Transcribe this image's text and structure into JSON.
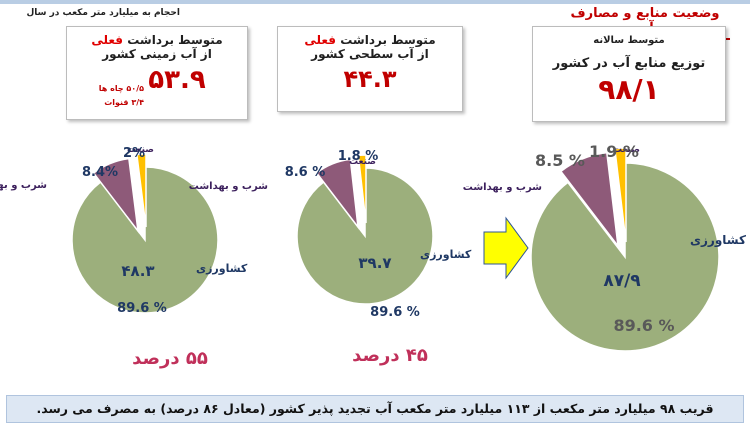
{
  "header": {
    "title": "وضعیت منابع و مصارف آب",
    "unit_note": "احجام به میلیارد متر مکعب در سال"
  },
  "boxes": [
    {
      "line1_prefix": "متوسط برداشت ",
      "line1_red": "فعلی",
      "line2": "از آب زمینی کشور",
      "value": "۵۳.۹",
      "notes": [
        "۵۰/۵ چاه ها",
        "۳/۴ قنوات"
      ]
    },
    {
      "line1_prefix": "متوسط برداشت ",
      "line1_red": "فعلی",
      "line2": "از آب سطحی کشور",
      "value": "۴۴.۳"
    },
    {
      "line1": "متوسط سالانه",
      "line2": "توزیع منابع آب در کشور",
      "value": "۹۸/۱"
    }
  ],
  "percent_labels": [
    "۵۵ درصد",
    "۴۵ درصد"
  ],
  "colors": {
    "agri": "#9caf7c",
    "drink": "#8e5a79",
    "industry": "#ffc000",
    "accent": "#c00000",
    "arrow": "#ffff00"
  },
  "chart_data": [
    {
      "type": "pie",
      "categories": [
        "کشاورزی",
        "شرب و بهداشت",
        "صنعت"
      ],
      "values": [
        89.6,
        8.4,
        2
      ],
      "value_labels": [
        "89.6  %",
        "8.4%",
        "2%"
      ],
      "inner_value": "۴۸.۳"
    },
    {
      "type": "pie",
      "categories": [
        "کشاورزی",
        "شرب و بهداشت",
        "صنعت"
      ],
      "values": [
        89.6,
        8.6,
        1.8
      ],
      "value_labels": [
        "89.6 %",
        "8.6 %",
        "1.8 %"
      ],
      "inner_value": "۳۹.۷"
    },
    {
      "type": "pie",
      "categories": [
        "کشاورزی",
        "شرب و بهداشت",
        "صنعت"
      ],
      "values": [
        89.6,
        8.5,
        1.9
      ],
      "value_labels": [
        "89.6 %",
        "8.5 %",
        "1.9 %"
      ],
      "inner_value": "۸۷/۹"
    }
  ],
  "footer": {
    "text": "قریب ۹۸ میلیارد متر مکعب از ۱۱۳ میلیارد متر مکعب آب تجدید پذیر کشور (معادل ۸۶ درصد) به مصرف می رسد."
  }
}
